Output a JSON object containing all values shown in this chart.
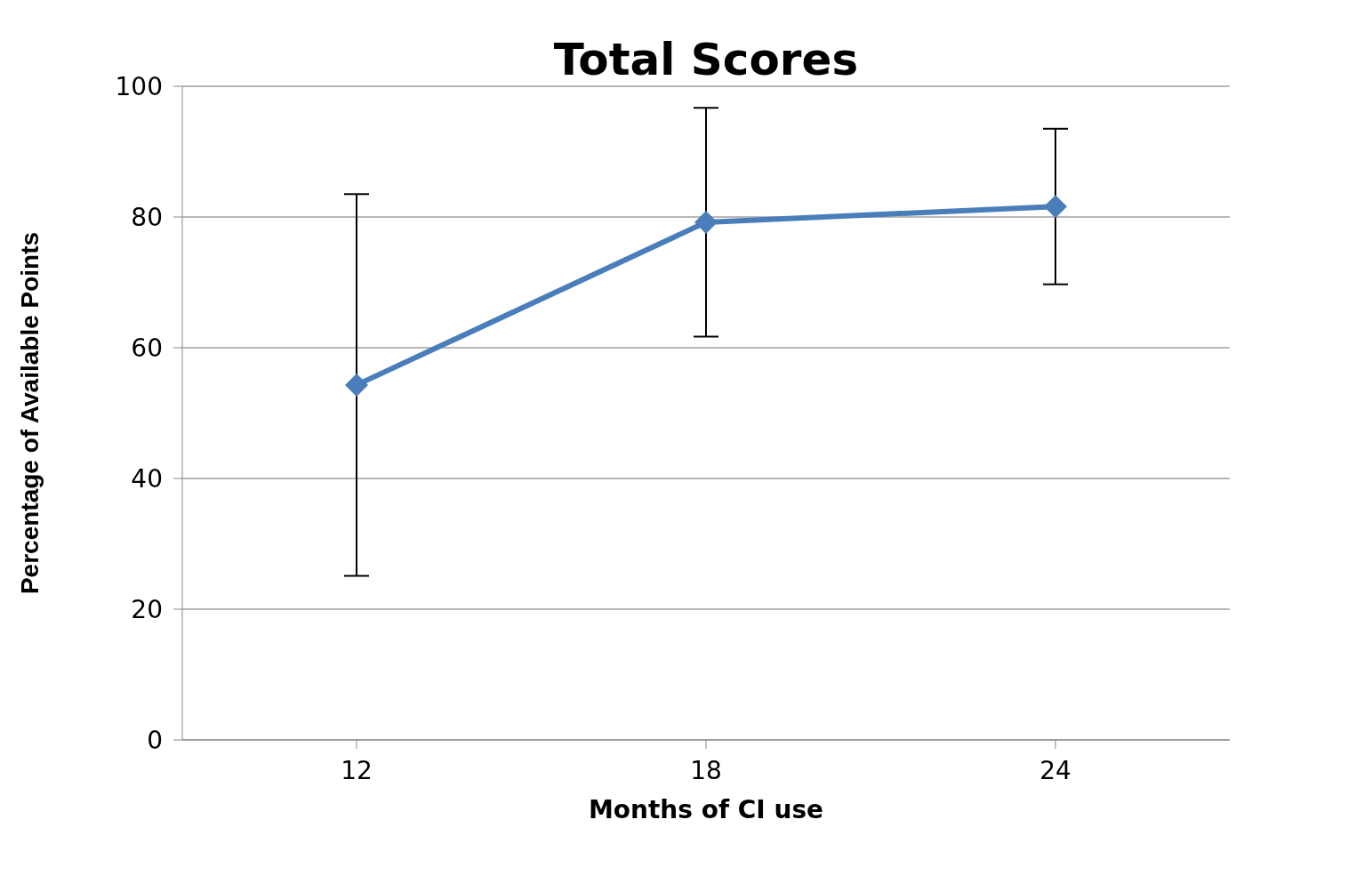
{
  "chart_data": {
    "type": "line",
    "title": "Total Scores",
    "xlabel": "Months of CI use",
    "ylabel": "Percentage of Available Points",
    "categories": [
      "12",
      "18",
      "24"
    ],
    "values": [
      54.3,
      79.2,
      81.6
    ],
    "errors": [
      29.2,
      17.5,
      11.9
    ],
    "color": "#4a7ebb",
    "ylim": [
      0,
      100
    ],
    "yticks": [
      0,
      20,
      40,
      60,
      80,
      100
    ],
    "grid": "y",
    "marker": "diamond",
    "line_style": "solid"
  }
}
